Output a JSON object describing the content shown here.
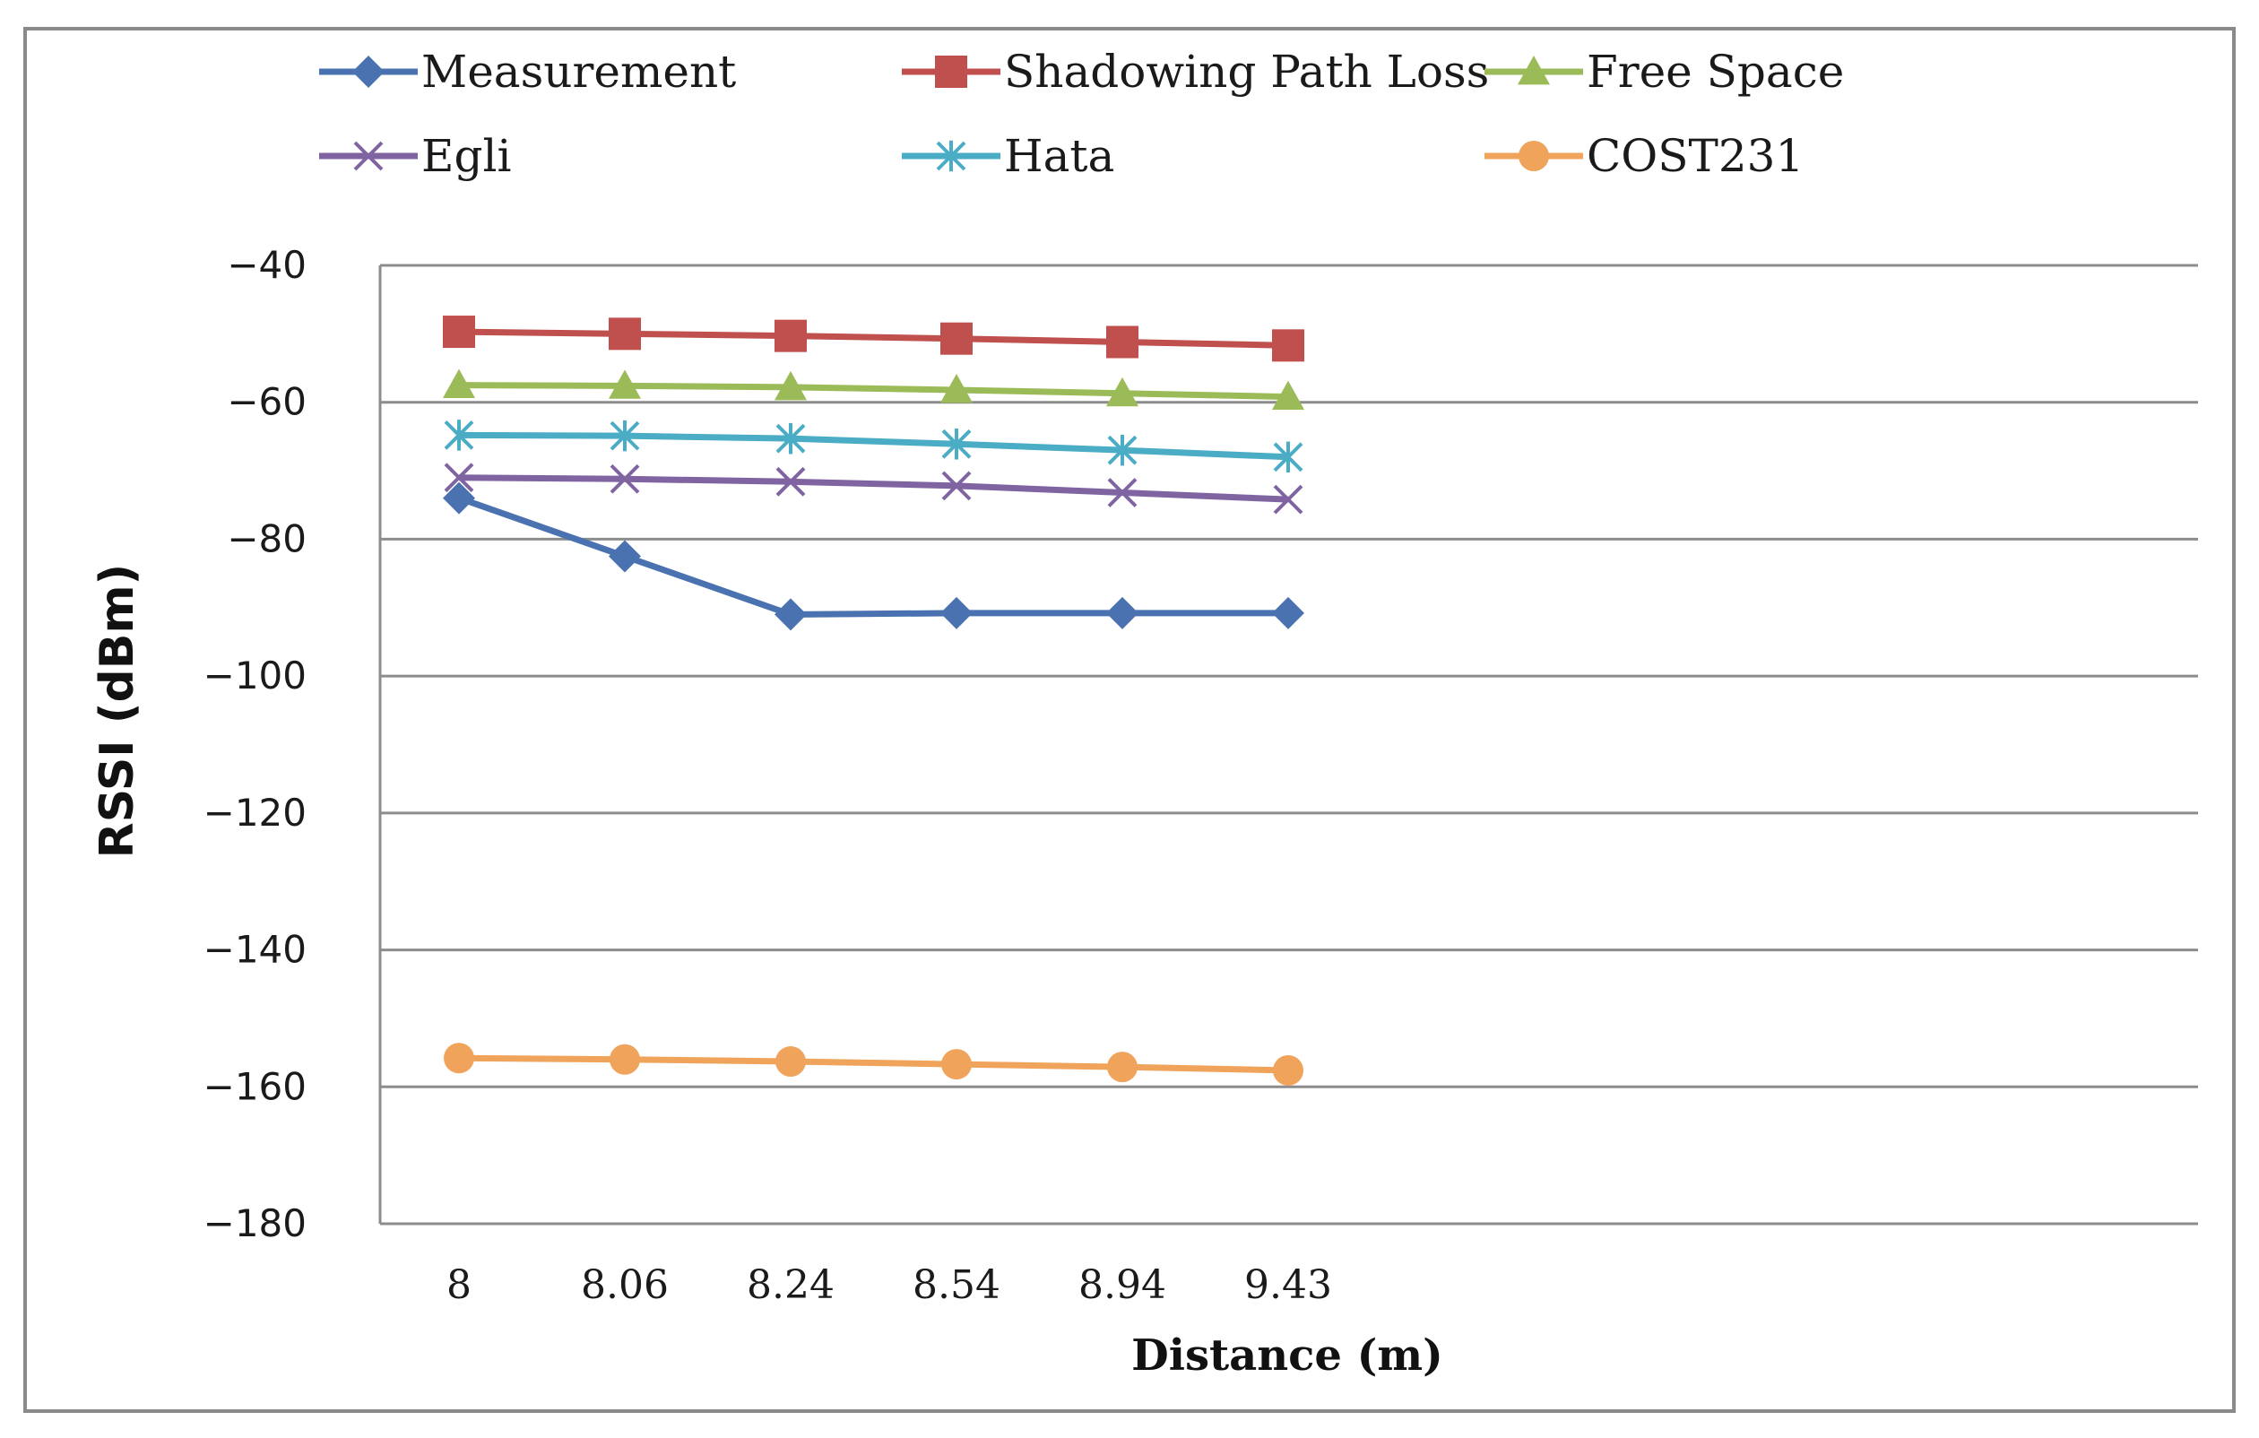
{
  "chart_data": {
    "type": "line",
    "title": "",
    "xlabel": "Distance (m)",
    "ylabel": "RSSI (dBm)",
    "categories": [
      "8",
      "8.06",
      "8.24",
      "8.54",
      "8.94",
      "9.43"
    ],
    "ylim": [
      -180,
      -40
    ],
    "yticks": [
      -40,
      -60,
      -80,
      -100,
      -120,
      -140,
      -160,
      -180
    ],
    "ytick_labels": [
      "−40",
      "−60",
      "−80",
      "−100",
      "−120",
      "−140",
      "−160",
      "−180"
    ],
    "grid": true,
    "legend_position": "top",
    "series": [
      {
        "name": "Measurement",
        "color": "#4a72b0",
        "marker": "diamond",
        "values": [
          -74,
          -82.5,
          -91,
          -90.8,
          -90.8,
          -90.8
        ]
      },
      {
        "name": "Shadowing Path Loss",
        "color": "#c0504d",
        "marker": "square",
        "values": [
          -49.7,
          -50,
          -50.3,
          -50.7,
          -51.2,
          -51.7
        ]
      },
      {
        "name": "Free Space",
        "color": "#9bbb59",
        "marker": "triangle",
        "values": [
          -57.5,
          -57.6,
          -57.8,
          -58.2,
          -58.7,
          -59.2
        ]
      },
      {
        "name": "Egli",
        "color": "#8064a2",
        "marker": "x",
        "values": [
          -71,
          -71.2,
          -71.6,
          -72.2,
          -73.2,
          -74.2
        ]
      },
      {
        "name": "Hata",
        "color": "#4bacc6",
        "marker": "star",
        "values": [
          -64.8,
          -64.9,
          -65.3,
          -66.1,
          -67,
          -68
        ]
      },
      {
        "name": "COST231",
        "color": "#f0a35a",
        "marker": "circle",
        "values": [
          -155.8,
          -156,
          -156.3,
          -156.7,
          -157.1,
          -157.6
        ]
      }
    ]
  }
}
